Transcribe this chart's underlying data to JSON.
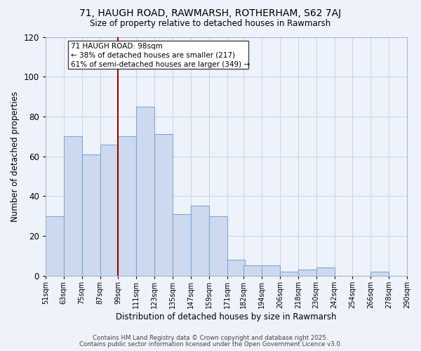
{
  "title": "71, HAUGH ROAD, RAWMARSH, ROTHERHAM, S62 7AJ",
  "subtitle": "Size of property relative to detached houses in Rawmarsh",
  "xlabel": "Distribution of detached houses by size in Rawmarsh",
  "ylabel": "Number of detached properties",
  "bin_labels": [
    "51sqm",
    "63sqm",
    "75sqm",
    "87sqm",
    "99sqm",
    "111sqm",
    "123sqm",
    "135sqm",
    "147sqm",
    "159sqm",
    "171sqm",
    "182sqm",
    "194sqm",
    "206sqm",
    "218sqm",
    "230sqm",
    "242sqm",
    "254sqm",
    "266sqm",
    "278sqm",
    "290sqm"
  ],
  "bin_edges": [
    51,
    63,
    75,
    87,
    99,
    111,
    123,
    135,
    147,
    159,
    171,
    182,
    194,
    206,
    218,
    230,
    242,
    254,
    266,
    278,
    290
  ],
  "bar_heights": [
    30,
    70,
    61,
    66,
    70,
    85,
    71,
    31,
    35,
    30,
    8,
    5,
    5,
    2,
    3,
    4,
    0,
    0,
    2,
    0
  ],
  "bar_color": "#ccd9ee",
  "bar_edge_color": "#82a8d4",
  "grid_color": "#c8d4e8",
  "background_color": "#eef2fa",
  "vline_x_index": 4,
  "vline_color": "#9b0000",
  "annotation_line1": "71 HAUGH ROAD: 98sqm",
  "annotation_line2": "← 38% of detached houses are smaller (217)",
  "annotation_line3": "61% of semi-detached houses are larger (349) →",
  "annotation_box_color": "#ffffff",
  "annotation_box_edge": "#444444",
  "ylim": [
    0,
    120
  ],
  "yticks": [
    0,
    20,
    40,
    60,
    80,
    100,
    120
  ],
  "footer_line1": "Contains HM Land Registry data © Crown copyright and database right 2025.",
  "footer_line2": "Contains public sector information licensed under the Open Government Licence v3.0."
}
